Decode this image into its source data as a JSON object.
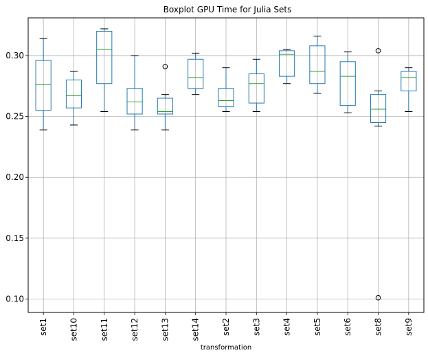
{
  "chart_data": {
    "type": "boxplot",
    "title": "Boxplot GPU Time for Julia Sets",
    "xlabel": "transformation",
    "ylabel": "",
    "ylim": [
      0.089,
      0.331
    ],
    "yticks": [
      0.1,
      0.15,
      0.2,
      0.25,
      0.3
    ],
    "ytick_labels": [
      "0.10",
      "0.15",
      "0.20",
      "0.25",
      "0.30"
    ],
    "grid": true,
    "colors": {
      "box": "#1f77b4",
      "median": "#2ca02c",
      "whisker": "#000000",
      "grid": "#b0b0b0"
    },
    "categories": [
      "set1",
      "set10",
      "set11",
      "set12",
      "set13",
      "set14",
      "set2",
      "set3",
      "set4",
      "set5",
      "set6",
      "set8",
      "set9"
    ],
    "boxes": [
      {
        "label": "set1",
        "whislo": 0.239,
        "q1": 0.255,
        "med": 0.276,
        "q3": 0.296,
        "whishi": 0.314,
        "fliers": []
      },
      {
        "label": "set10",
        "whislo": 0.243,
        "q1": 0.257,
        "med": 0.267,
        "q3": 0.28,
        "whishi": 0.287,
        "fliers": []
      },
      {
        "label": "set11",
        "whislo": 0.254,
        "q1": 0.277,
        "med": 0.305,
        "q3": 0.32,
        "whishi": 0.322,
        "fliers": []
      },
      {
        "label": "set12",
        "whislo": 0.239,
        "q1": 0.252,
        "med": 0.262,
        "q3": 0.273,
        "whishi": 0.3,
        "fliers": []
      },
      {
        "label": "set13",
        "whislo": 0.239,
        "q1": 0.252,
        "med": 0.254,
        "q3": 0.265,
        "whishi": 0.268,
        "fliers": [
          0.291
        ]
      },
      {
        "label": "set14",
        "whislo": 0.268,
        "q1": 0.273,
        "med": 0.282,
        "q3": 0.297,
        "whishi": 0.302,
        "fliers": []
      },
      {
        "label": "set2",
        "whislo": 0.254,
        "q1": 0.258,
        "med": 0.263,
        "q3": 0.273,
        "whishi": 0.29,
        "fliers": []
      },
      {
        "label": "set3",
        "whislo": 0.254,
        "q1": 0.261,
        "med": 0.277,
        "q3": 0.285,
        "whishi": 0.297,
        "fliers": []
      },
      {
        "label": "set4",
        "whislo": 0.277,
        "q1": 0.283,
        "med": 0.301,
        "q3": 0.304,
        "whishi": 0.305,
        "fliers": []
      },
      {
        "label": "set5",
        "whislo": 0.269,
        "q1": 0.277,
        "med": 0.287,
        "q3": 0.308,
        "whishi": 0.316,
        "fliers": []
      },
      {
        "label": "set6",
        "whislo": 0.253,
        "q1": 0.259,
        "med": 0.283,
        "q3": 0.295,
        "whishi": 0.303,
        "fliers": []
      },
      {
        "label": "set8",
        "whislo": 0.242,
        "q1": 0.245,
        "med": 0.256,
        "q3": 0.268,
        "whishi": 0.271,
        "fliers": [
          0.304,
          0.101
        ]
      },
      {
        "label": "set9",
        "whislo": 0.254,
        "q1": 0.271,
        "med": 0.282,
        "q3": 0.287,
        "whishi": 0.29,
        "fliers": []
      }
    ]
  }
}
